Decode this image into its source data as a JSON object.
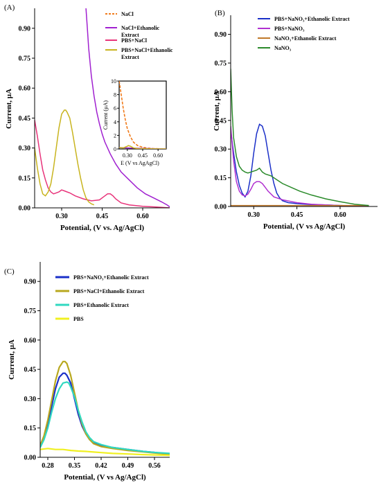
{
  "chart_data": [
    {
      "panel": "(A)",
      "type": "line",
      "xlabel": "Potential, (V vs. Ag/AgCl)",
      "ylabel": "Current, µA",
      "xlim": [
        0.2,
        0.7
      ],
      "ylim": [
        0,
        1.0
      ],
      "xticks": [
        "0.30",
        "0.45",
        "0.60"
      ],
      "xtick_values": [
        0.3,
        0.45,
        0.6
      ],
      "yticks": [
        "0.00",
        "0.15",
        "0.30",
        "0.45",
        "0.60",
        "0.75",
        "0.90"
      ],
      "ytick_values": [
        0,
        0.15,
        0.3,
        0.45,
        0.6,
        0.75,
        0.9
      ],
      "legend_position": "top-right",
      "series": [
        {
          "name": "NaCl",
          "color": "#f07a1a",
          "dash": true,
          "x": [],
          "y": []
        },
        {
          "name": "NaCl+Ethanolic Extract",
          "color": "#a020d0",
          "dash": false,
          "x": [
            0.39,
            0.395,
            0.4,
            0.41,
            0.42,
            0.43,
            0.44,
            0.45,
            0.46,
            0.48,
            0.5,
            0.52,
            0.55,
            0.58,
            0.61,
            0.64,
            0.67,
            0.69,
            0.7
          ],
          "y": [
            1.0,
            0.9,
            0.8,
            0.66,
            0.56,
            0.48,
            0.42,
            0.37,
            0.33,
            0.27,
            0.22,
            0.18,
            0.14,
            0.1,
            0.07,
            0.05,
            0.03,
            0.015,
            0.005
          ]
        },
        {
          "name": "PBS+NaCl",
          "color": "#e8337a",
          "dash": false,
          "x": [
            0.2,
            0.21,
            0.22,
            0.23,
            0.24,
            0.25,
            0.26,
            0.27,
            0.28,
            0.29,
            0.3,
            0.31,
            0.32,
            0.33,
            0.35,
            0.38,
            0.41,
            0.44,
            0.46,
            0.47,
            0.48,
            0.49,
            0.5,
            0.52,
            0.55,
            0.6,
            0.65,
            0.7
          ],
          "y": [
            0.44,
            0.36,
            0.27,
            0.19,
            0.14,
            0.1,
            0.08,
            0.07,
            0.075,
            0.08,
            0.09,
            0.085,
            0.08,
            0.075,
            0.06,
            0.045,
            0.035,
            0.04,
            0.06,
            0.07,
            0.07,
            0.06,
            0.045,
            0.025,
            0.015,
            0.008,
            0.004,
            0.0
          ]
        },
        {
          "name": "PBS+NaCl+Ethanolic Extract",
          "color": "#c8b41e",
          "dash": false,
          "x": [
            0.2,
            0.21,
            0.22,
            0.23,
            0.24,
            0.25,
            0.26,
            0.27,
            0.28,
            0.29,
            0.3,
            0.31,
            0.315,
            0.32,
            0.33,
            0.34,
            0.35,
            0.36,
            0.37,
            0.38,
            0.39,
            0.4,
            0.41,
            0.42
          ],
          "y": [
            0.3,
            0.2,
            0.12,
            0.07,
            0.06,
            0.08,
            0.12,
            0.2,
            0.3,
            0.4,
            0.47,
            0.49,
            0.49,
            0.48,
            0.45,
            0.38,
            0.3,
            0.22,
            0.15,
            0.09,
            0.05,
            0.03,
            0.02,
            0.015
          ]
        }
      ],
      "inset": {
        "ylabel": "Current (µA)",
        "xlabel": "E (V vs AgAgCl)",
        "xlim": [
          0.22,
          0.68
        ],
        "ylim": [
          0,
          10
        ],
        "xticks": [
          "0.30",
          "0.45",
          "0.60"
        ],
        "xtick_values": [
          0.3,
          0.45,
          0.6
        ],
        "yticks": [
          "0",
          "2",
          "4",
          "6",
          "8",
          "10"
        ],
        "ytick_values": [
          0,
          2,
          4,
          6,
          8,
          10
        ],
        "series": [
          {
            "color": "#f07a1a",
            "dash": true,
            "x": [
              0.22,
              0.24,
              0.26,
              0.28,
              0.3,
              0.33,
              0.36,
              0.4,
              0.45,
              0.5,
              0.55,
              0.6,
              0.68
            ],
            "y": [
              10,
              8.0,
              6.0,
              4.3,
              3.0,
              1.8,
              1.0,
              0.5,
              0.25,
              0.12,
              0.06,
              0.03,
              0.0
            ]
          },
          {
            "color": "#a020d0",
            "dash": false,
            "x": [
              0.22,
              0.3,
              0.4,
              0.5,
              0.6,
              0.68
            ],
            "y": [
              0.2,
              0.15,
              0.1,
              0.05,
              0.02,
              0.0
            ]
          },
          {
            "color": "#c8b41e",
            "dash": false,
            "x": [
              0.22,
              0.26,
              0.3,
              0.31,
              0.33,
              0.36,
              0.4,
              0.5,
              0.68
            ],
            "y": [
              0.2,
              0.15,
              0.4,
              0.5,
              0.4,
              0.15,
              0.05,
              0.02,
              0.0
            ]
          }
        ]
      }
    },
    {
      "panel": "(B)",
      "type": "line",
      "xlabel": "Potential, (V vs Ag/AgCl)",
      "ylabel": "Current, µA",
      "xlim": [
        0.22,
        0.73
      ],
      "ylim": [
        0,
        1.0
      ],
      "xticks": [
        "0.30",
        "0.45",
        "0.60"
      ],
      "xtick_values": [
        0.3,
        0.45,
        0.6
      ],
      "yticks": [
        "0.00",
        "0.15",
        "0.30",
        "0.45",
        "0.60",
        "0.75",
        "0.90"
      ],
      "ytick_values": [
        0,
        0.15,
        0.3,
        0.45,
        0.6,
        0.75,
        0.9
      ],
      "legend_position": "top-right",
      "series": [
        {
          "name": "PBS+NaNO₃+Ethanolic Extract",
          "color": "#1a2fc8",
          "dash": false,
          "x": [
            0.22,
            0.23,
            0.24,
            0.25,
            0.26,
            0.27,
            0.28,
            0.29,
            0.3,
            0.31,
            0.32,
            0.33,
            0.34,
            0.35,
            0.36,
            0.37,
            0.38,
            0.39,
            0.4,
            0.42,
            0.45,
            0.5,
            0.55,
            0.6,
            0.65,
            0.7
          ],
          "y": [
            0.4,
            0.28,
            0.18,
            0.11,
            0.07,
            0.05,
            0.08,
            0.16,
            0.28,
            0.38,
            0.43,
            0.42,
            0.37,
            0.28,
            0.19,
            0.12,
            0.07,
            0.045,
            0.03,
            0.02,
            0.015,
            0.01,
            0.008,
            0.005,
            0.003,
            0.0
          ]
        },
        {
          "name": "PBS+NaNO₃",
          "color": "#b030d0",
          "dash": false,
          "x": [
            0.22,
            0.23,
            0.24,
            0.25,
            0.26,
            0.27,
            0.28,
            0.29,
            0.3,
            0.31,
            0.32,
            0.33,
            0.34,
            0.35,
            0.37,
            0.4,
            0.45,
            0.5,
            0.55,
            0.6,
            0.65,
            0.7
          ],
          "y": [
            0.42,
            0.24,
            0.13,
            0.08,
            0.06,
            0.055,
            0.065,
            0.09,
            0.12,
            0.13,
            0.13,
            0.12,
            0.1,
            0.08,
            0.05,
            0.035,
            0.02,
            0.012,
            0.008,
            0.005,
            0.003,
            0.0
          ]
        },
        {
          "name": "NaNO₃+Ethanolic Extract",
          "color": "#c07828",
          "dash": false,
          "x": [
            0.22,
            0.3,
            0.4,
            0.5,
            0.6,
            0.7
          ],
          "y": [
            0.005,
            0.005,
            0.005,
            0.005,
            0.005,
            0.005
          ]
        },
        {
          "name": "NaNO₃",
          "color": "#2a8a2a",
          "dash": false,
          "x": [
            0.22,
            0.225,
            0.23,
            0.24,
            0.25,
            0.26,
            0.27,
            0.28,
            0.29,
            0.3,
            0.31,
            0.32,
            0.33,
            0.34,
            0.36,
            0.38,
            0.4,
            0.43,
            0.46,
            0.5,
            0.55,
            0.6,
            0.65,
            0.7
          ],
          "y": [
            0.72,
            0.5,
            0.36,
            0.26,
            0.21,
            0.19,
            0.18,
            0.175,
            0.18,
            0.185,
            0.19,
            0.2,
            0.18,
            0.17,
            0.16,
            0.14,
            0.12,
            0.1,
            0.08,
            0.06,
            0.04,
            0.025,
            0.012,
            0.005
          ]
        }
      ]
    },
    {
      "panel": "(C)",
      "type": "line",
      "xlabel": "Potential, (V vs Ag/AgCl)",
      "ylabel": "Current, µA",
      "xlim": [
        0.26,
        0.6
      ],
      "ylim": [
        0,
        1.0
      ],
      "xticks": [
        "0.28",
        "0.35",
        "0.42",
        "0.49",
        "0.56"
      ],
      "xtick_values": [
        0.28,
        0.35,
        0.42,
        0.49,
        0.56
      ],
      "yticks": [
        "0.00",
        "0.15",
        "0.30",
        "0.45",
        "0.60",
        "0.75",
        "0.90"
      ],
      "ytick_values": [
        0,
        0.15,
        0.3,
        0.45,
        0.6,
        0.75,
        0.9
      ],
      "legend_position": "top-left",
      "series": [
        {
          "name": "PBS+NaNO₃+Ethanolic Extract",
          "color": "#1a2fc8",
          "dash": false,
          "x": [
            0.26,
            0.27,
            0.28,
            0.29,
            0.3,
            0.31,
            0.32,
            0.325,
            0.33,
            0.34,
            0.35,
            0.36,
            0.37,
            0.38,
            0.39,
            0.4,
            0.42,
            0.45,
            0.49,
            0.53,
            0.56,
            0.6
          ],
          "y": [
            0.06,
            0.1,
            0.17,
            0.26,
            0.35,
            0.41,
            0.43,
            0.43,
            0.42,
            0.38,
            0.3,
            0.22,
            0.16,
            0.12,
            0.09,
            0.075,
            0.06,
            0.05,
            0.04,
            0.03,
            0.025,
            0.015
          ]
        },
        {
          "name": "PBS+NaCl+Ethanolic Extract",
          "color": "#b8a81e",
          "dash": false,
          "x": [
            0.26,
            0.27,
            0.28,
            0.29,
            0.3,
            0.31,
            0.32,
            0.325,
            0.33,
            0.34,
            0.35,
            0.36,
            0.37,
            0.38,
            0.39,
            0.4,
            0.42,
            0.45,
            0.49,
            0.53,
            0.56,
            0.6
          ],
          "y": [
            0.06,
            0.11,
            0.19,
            0.29,
            0.39,
            0.46,
            0.49,
            0.49,
            0.48,
            0.42,
            0.33,
            0.24,
            0.17,
            0.12,
            0.09,
            0.07,
            0.055,
            0.045,
            0.035,
            0.028,
            0.022,
            0.015
          ]
        },
        {
          "name": "PBS+Ethanolic Extract",
          "color": "#30d8c0",
          "dash": false,
          "x": [
            0.26,
            0.27,
            0.28,
            0.29,
            0.3,
            0.31,
            0.32,
            0.33,
            0.335,
            0.34,
            0.35,
            0.36,
            0.37,
            0.38,
            0.39,
            0.4,
            0.42,
            0.45,
            0.49,
            0.53,
            0.56,
            0.6
          ],
          "y": [
            0.05,
            0.09,
            0.15,
            0.23,
            0.3,
            0.35,
            0.38,
            0.385,
            0.38,
            0.36,
            0.31,
            0.24,
            0.18,
            0.13,
            0.1,
            0.08,
            0.065,
            0.05,
            0.04,
            0.03,
            0.025,
            0.02
          ]
        },
        {
          "name": "PBS",
          "color": "#f0f020",
          "dash": false,
          "x": [
            0.26,
            0.28,
            0.3,
            0.32,
            0.34,
            0.36,
            0.38,
            0.4,
            0.42,
            0.45,
            0.49,
            0.53,
            0.56,
            0.6
          ],
          "y": [
            0.04,
            0.045,
            0.04,
            0.04,
            0.035,
            0.032,
            0.03,
            0.027,
            0.024,
            0.02,
            0.017,
            0.014,
            0.012,
            0.01
          ]
        }
      ]
    }
  ]
}
